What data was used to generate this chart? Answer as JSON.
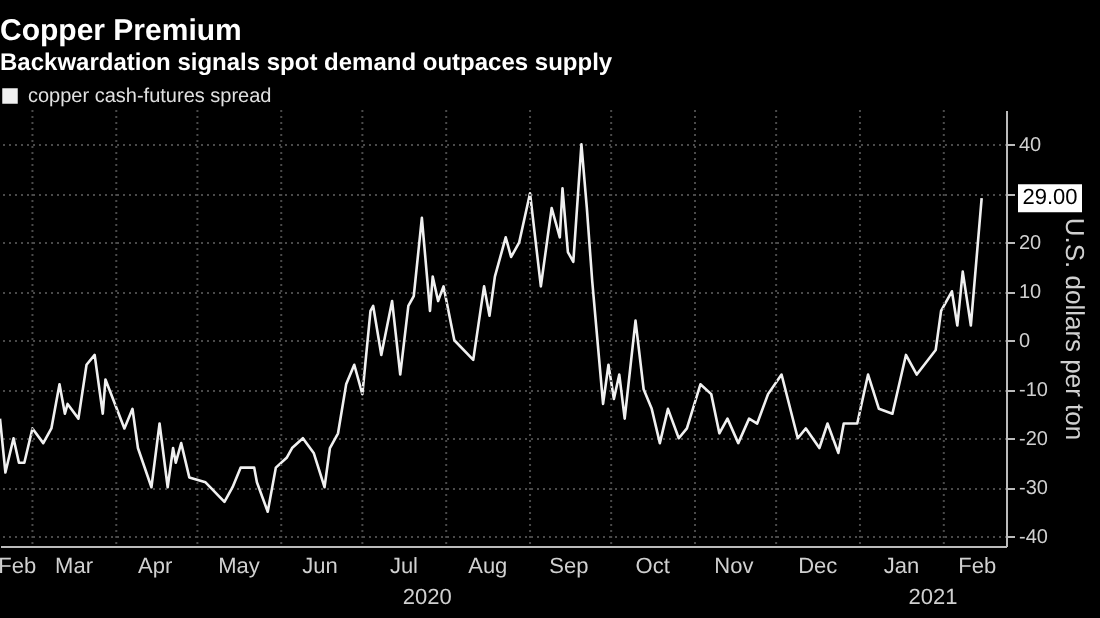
{
  "chart_data": {
    "type": "line",
    "title": "Copper Premium",
    "subtitle": "Backwardation signals spot demand outpaces supply",
    "ylabel": "U.S. dollars per ton",
    "x": [
      "2020-02-18",
      "2020-02-20",
      "2020-02-23",
      "2020-02-25",
      "2020-02-27",
      "2020-03-01",
      "2020-03-05",
      "2020-03-08",
      "2020-03-11",
      "2020-03-13",
      "2020-03-14",
      "2020-03-18",
      "2020-03-21",
      "2020-03-24",
      "2020-03-27",
      "2020-03-28",
      "2020-04-04",
      "2020-04-07",
      "2020-04-09",
      "2020-04-14",
      "2020-04-17",
      "2020-04-20",
      "2020-04-22",
      "2020-04-23",
      "2020-04-25",
      "2020-04-28",
      "2020-05-04",
      "2020-05-11",
      "2020-05-14",
      "2020-05-17",
      "2020-05-22",
      "2020-05-23",
      "2020-05-27",
      "2020-05-30",
      "2020-06-03",
      "2020-06-05",
      "2020-06-09",
      "2020-06-13",
      "2020-06-17",
      "2020-06-19",
      "2020-06-22",
      "2020-06-25",
      "2020-06-28",
      "2020-07-01",
      "2020-07-04",
      "2020-07-05",
      "2020-07-08",
      "2020-07-12",
      "2020-07-15",
      "2020-07-18",
      "2020-07-20",
      "2020-07-23",
      "2020-07-26",
      "2020-07-27",
      "2020-07-29",
      "2020-07-31",
      "2020-08-04",
      "2020-08-11",
      "2020-08-15",
      "2020-08-17",
      "2020-08-19",
      "2020-08-23",
      "2020-08-25",
      "2020-08-28",
      "2020-09-01",
      "2020-09-05",
      "2020-09-09",
      "2020-09-12",
      "2020-09-13",
      "2020-09-15",
      "2020-09-17",
      "2020-09-20",
      "2020-09-22",
      "2020-09-24",
      "2020-09-28",
      "2020-09-30",
      "2020-10-02",
      "2020-10-04",
      "2020-10-06",
      "2020-10-10",
      "2020-10-13",
      "2020-10-16",
      "2020-10-19",
      "2020-10-22",
      "2020-10-26",
      "2020-10-29",
      "2020-11-03",
      "2020-11-07",
      "2020-11-10",
      "2020-11-13",
      "2020-11-17",
      "2020-11-21",
      "2020-11-24",
      "2020-11-28",
      "2020-12-03",
      "2020-12-09",
      "2020-12-12",
      "2020-12-17",
      "2020-12-20",
      "2020-12-24",
      "2020-12-26",
      "2020-12-31",
      "2021-01-04",
      "2021-01-08",
      "2021-01-13",
      "2021-01-18",
      "2021-01-22",
      "2021-01-29",
      "2021-01-31",
      "2021-02-04",
      "2021-02-06",
      "2021-02-08",
      "2021-02-11",
      "2021-02-15"
    ],
    "series": [
      {
        "name": "copper cash-futures spread",
        "color": "#f0f0f0",
        "values": [
          -16,
          -27,
          -20,
          -25,
          -25,
          -18,
          -21,
          -18,
          -9,
          -15,
          -13,
          -16,
          -5,
          -3,
          -15,
          -8,
          -18,
          -14,
          -22,
          -30,
          -17,
          -30,
          -22,
          -25,
          -21,
          -28,
          -29,
          -33,
          -30,
          -26,
          -26,
          -29,
          -35,
          -26,
          -24,
          -22,
          -20,
          -23,
          -30,
          -22,
          -19,
          -9,
          -5,
          -11,
          6,
          7,
          -3,
          8,
          -7,
          7,
          9,
          25,
          6,
          13,
          8,
          11,
          0,
          -4,
          11,
          5,
          13,
          21,
          17,
          20,
          30,
          11,
          27,
          21,
          31,
          18,
          16,
          40,
          27,
          12,
          -13,
          -5,
          -12,
          -7,
          -16,
          4,
          -10,
          -14,
          -21,
          -14,
          -20,
          -18,
          -9,
          -11,
          -19,
          -16,
          -21,
          -16,
          -17,
          -11,
          -7,
          -20,
          -18,
          -22,
          -17,
          -23,
          -17,
          -17,
          -7,
          -14,
          -15,
          -3,
          -7,
          -2,
          6,
          10,
          3,
          14,
          3,
          29
        ]
      }
    ],
    "xlim": [
      "2020-02-18",
      "2021-02-24"
    ],
    "xticks": [
      {
        "value": "2020-02-24",
        "label": "Feb"
      },
      {
        "value": "2020-03-16",
        "label": "Mar"
      },
      {
        "value": "2020-04-15",
        "label": "Apr"
      },
      {
        "value": "2020-05-16",
        "label": "May"
      },
      {
        "value": "2020-06-15",
        "label": "Jun"
      },
      {
        "value": "2020-07-16",
        "label": "Jul"
      },
      {
        "value": "2020-08-16",
        "label": "Aug"
      },
      {
        "value": "2020-09-15",
        "label": "Sep"
      },
      {
        "value": "2020-10-16",
        "label": "Oct"
      },
      {
        "value": "2020-11-15",
        "label": "Nov"
      },
      {
        "value": "2020-12-16",
        "label": "Dec"
      },
      {
        "value": "2021-01-16",
        "label": "Jan"
      },
      {
        "value": "2021-02-13",
        "label": "Feb"
      }
    ],
    "ylim": [
      -42,
      47
    ],
    "yticks": [
      -40,
      -30,
      -20,
      -10,
      0,
      10,
      20,
      {
        "value": 30,
        "label": null
      },
      40
    ],
    "grid": true,
    "legend": "top left",
    "annotations": [
      "2020",
      "2021",
      "29.00"
    ]
  }
}
